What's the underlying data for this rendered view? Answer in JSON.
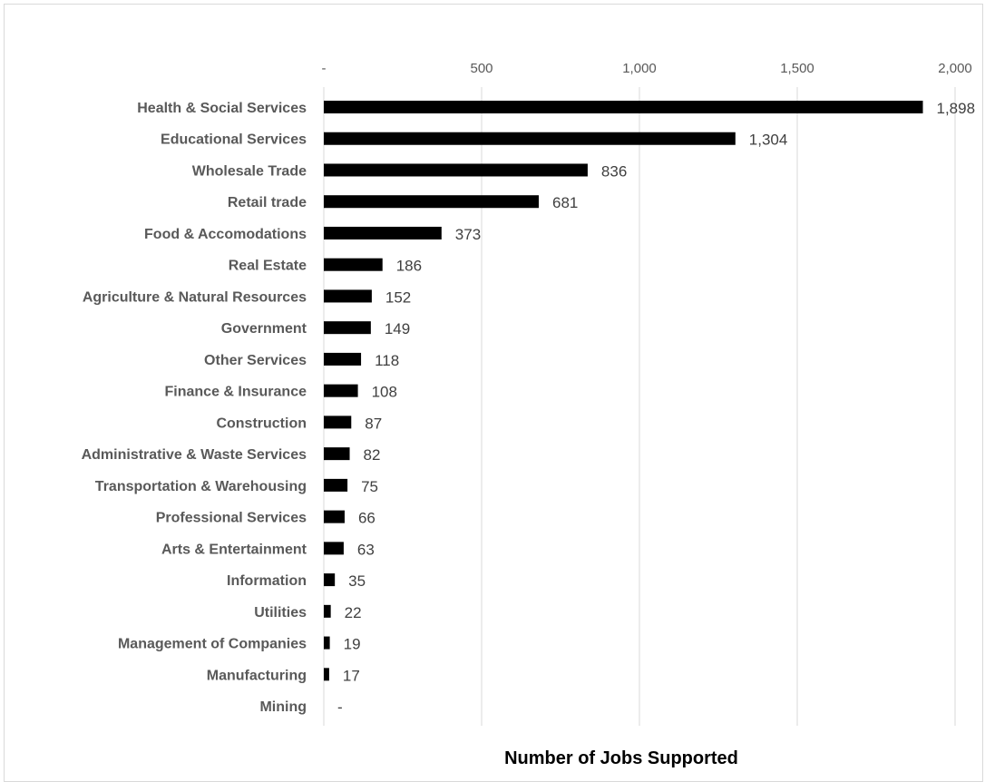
{
  "chart_data": {
    "type": "bar",
    "orientation": "horizontal",
    "xlabel": "Number of Jobs Supported",
    "xlim": [
      0,
      2000
    ],
    "x_ticks": [
      {
        "value": 0,
        "label": "-"
      },
      {
        "value": 500,
        "label": "500"
      },
      {
        "value": 1000,
        "label": "1,000"
      },
      {
        "value": 1500,
        "label": "1,500"
      },
      {
        "value": 2000,
        "label": "2,000"
      }
    ],
    "categories": [
      "Health & Social Services",
      "Educational Services",
      "Wholesale Trade",
      "Retail trade",
      "Food & Accomodations",
      "Real Estate",
      "Agriculture & Natural Resources",
      "Government",
      "Other Services",
      "Finance & Insurance",
      "Construction",
      "Administrative & Waste Services",
      "Transportation & Warehousing",
      "Professional Services",
      "Arts & Entertainment",
      "Information",
      "Utilities",
      "Management of Companies",
      "Manufacturing",
      "Mining"
    ],
    "values": [
      1898,
      1304,
      836,
      681,
      373,
      186,
      152,
      149,
      118,
      108,
      87,
      82,
      75,
      66,
      63,
      35,
      22,
      19,
      17,
      0
    ],
    "data_labels": [
      "1,898",
      "1,304",
      "836",
      "681",
      "373",
      "186",
      "152",
      "149",
      "118",
      "108",
      "87",
      "82",
      "75",
      "66",
      "63",
      "35",
      "22",
      "19",
      "17",
      "-"
    ],
    "bar_color": "#000000",
    "grid": true,
    "gridline_color": "#d9d9d9",
    "axis_position": "top",
    "legend": "none"
  }
}
